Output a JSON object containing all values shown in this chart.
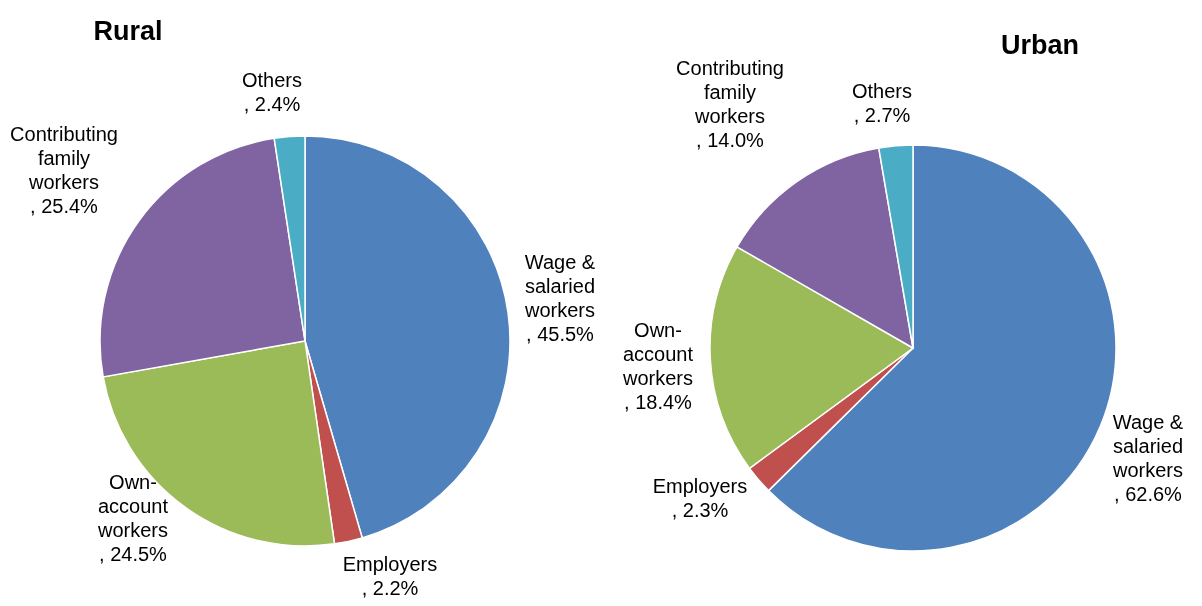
{
  "chart_data": [
    {
      "type": "pie",
      "title": "Rural",
      "categories": [
        "Wage & salaried workers",
        "Employers",
        "Own-account workers",
        "Contributing family workers",
        "Others"
      ],
      "values": [
        45.5,
        2.2,
        24.5,
        25.4,
        2.4
      ],
      "colors": [
        "#4f81bd",
        "#c0504d",
        "#9bbb59",
        "#8064a2",
        "#4bacc6"
      ],
      "value_labels": [
        ", 45.5%",
        ", 2.2%",
        ", 24.5%",
        ", 25.4%",
        ", 2.4%"
      ]
    },
    {
      "type": "pie",
      "title": "Urban",
      "categories": [
        "Wage & salaried workers",
        "Employers",
        "Own-account workers",
        "Contributing family workers",
        "Others"
      ],
      "values": [
        62.6,
        2.3,
        18.4,
        14.0,
        2.7
      ],
      "colors": [
        "#4f81bd",
        "#c0504d",
        "#9bbb59",
        "#8064a2",
        "#4bacc6"
      ],
      "value_labels": [
        ", 62.6%",
        ", 2.3%",
        ", 18.4%",
        ", 14.0%",
        ", 2.7%"
      ]
    }
  ]
}
